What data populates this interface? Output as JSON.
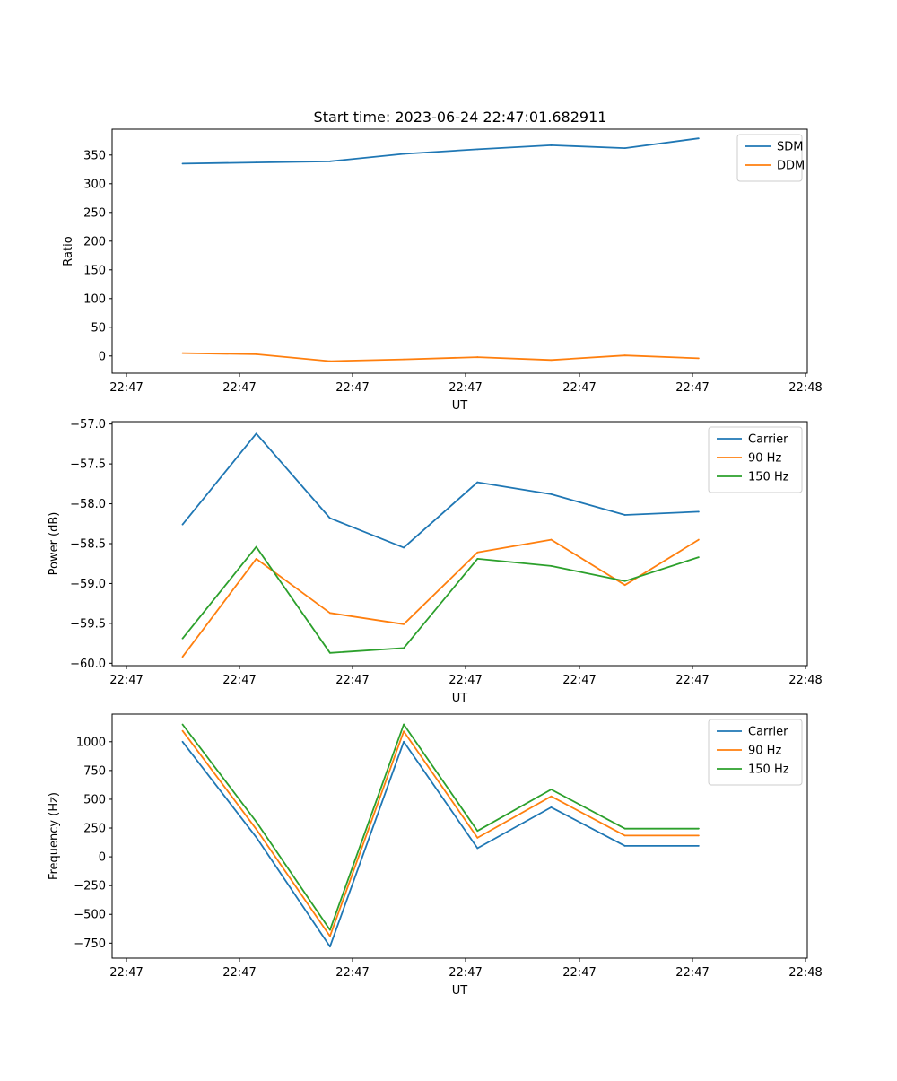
{
  "figure_title": "Start time: 2023-06-24 22:47:01.682911",
  "colors": {
    "blue": "#1f77b4",
    "orange": "#ff7f0e",
    "green": "#2ca02c"
  },
  "chart_data": [
    {
      "type": "line",
      "title": "Start time: 2023-06-24 22:47:01.682911",
      "xlabel": "UT",
      "ylabel": "Ratio",
      "x_tick_labels": [
        "22:47",
        "22:47",
        "22:47",
        "22:47",
        "22:47",
        "22:47",
        "22:48"
      ],
      "y_ticks": [
        0,
        50,
        100,
        150,
        200,
        250,
        300,
        350
      ],
      "ylim": [
        -30,
        395
      ],
      "legend_position": "top-right",
      "series": [
        {
          "name": "SDM",
          "color": "#1f77b4",
          "values": [
            335,
            337,
            339,
            352,
            360,
            367,
            362,
            379
          ]
        },
        {
          "name": "DDM",
          "color": "#ff7f0e",
          "values": [
            5,
            3,
            -9,
            -6,
            -2,
            -7,
            1,
            -4
          ]
        }
      ]
    },
    {
      "type": "line",
      "title": "",
      "xlabel": "UT",
      "ylabel": "Power (dB)",
      "x_tick_labels": [
        "22:47",
        "22:47",
        "22:47",
        "22:47",
        "22:47",
        "22:47",
        "22:48"
      ],
      "y_ticks": [
        -60.0,
        -59.5,
        -59.0,
        -58.5,
        -58.0,
        -57.5,
        -57.0
      ],
      "y_tick_labels": [
        "−60.0",
        "−59.5",
        "−59.0",
        "−58.5",
        "−58.0",
        "−57.5",
        "−57.0"
      ],
      "ylim": [
        -60.03,
        -56.97
      ],
      "legend_position": "top-right",
      "series": [
        {
          "name": "Carrier",
          "color": "#1f77b4",
          "values": [
            -58.26,
            -57.12,
            -58.18,
            -58.55,
            -57.73,
            -57.88,
            -58.14,
            -58.1
          ]
        },
        {
          "name": "90 Hz",
          "color": "#ff7f0e",
          "values": [
            -59.92,
            -58.69,
            -59.37,
            -59.51,
            -58.61,
            -58.45,
            -59.02,
            -58.45
          ]
        },
        {
          "name": "150 Hz",
          "color": "#2ca02c",
          "values": [
            -59.69,
            -58.54,
            -59.87,
            -59.81,
            -58.69,
            -58.78,
            -58.97,
            -58.67
          ]
        }
      ]
    },
    {
      "type": "line",
      "title": "",
      "xlabel": "UT",
      "ylabel": "Frequency (Hz)",
      "x_tick_labels": [
        "22:47",
        "22:47",
        "22:47",
        "22:47",
        "22:47",
        "22:47",
        "22:48"
      ],
      "y_ticks": [
        -750,
        -500,
        -250,
        0,
        250,
        500,
        750,
        1000
      ],
      "y_tick_labels": [
        "−750",
        "−500",
        "−250",
        "0",
        "250",
        "500",
        "750",
        "1000"
      ],
      "ylim": [
        -880,
        1240
      ],
      "legend_position": "top-right",
      "series": [
        {
          "name": "Carrier",
          "color": "#1f77b4",
          "values": [
            1000,
            170,
            -780,
            1000,
            75,
            430,
            95,
            95
          ]
        },
        {
          "name": "90 Hz",
          "color": "#ff7f0e",
          "values": [
            1095,
            240,
            -690,
            1090,
            165,
            525,
            185,
            185
          ]
        },
        {
          "name": "150 Hz",
          "color": "#2ca02c",
          "values": [
            1150,
            305,
            -635,
            1150,
            225,
            585,
            245,
            245
          ]
        }
      ]
    }
  ]
}
